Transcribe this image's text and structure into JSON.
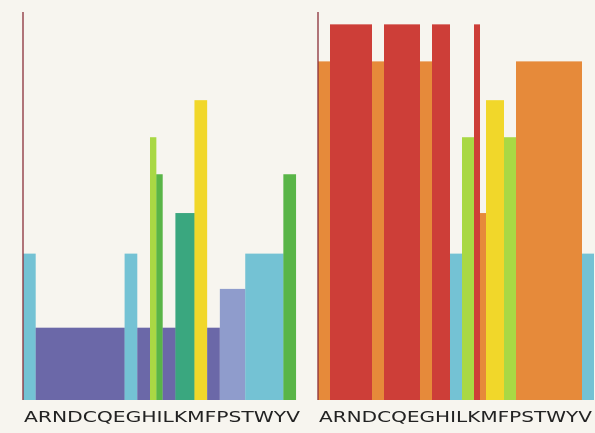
{
  "chart_data": [
    {
      "type": "bar",
      "categories": [
        "A",
        "R",
        "N",
        "D",
        "C",
        "Q",
        "E",
        "G",
        "H",
        "I",
        "L",
        "K",
        "M",
        "F",
        "P",
        "S",
        "T",
        "W",
        "Y",
        "V"
      ],
      "tick_text": "ARNDCQEGHILKMFPSTWYV",
      "ylim": [
        0,
        110
      ],
      "bars": [
        {
          "from": 0,
          "to": 1,
          "value": 41.5,
          "color": "#74c2d4"
        },
        {
          "from": 1,
          "to": 8,
          "value": 20.5,
          "color": "#6b68a8"
        },
        {
          "from": 8,
          "to": 9,
          "value": 41.5,
          "color": "#74c2d4"
        },
        {
          "from": 9,
          "to": 10,
          "value": 20.5,
          "color": "#6b68a8"
        },
        {
          "from": 10,
          "to": 10.5,
          "value": 74.5,
          "color": "#a9d844"
        },
        {
          "from": 10.5,
          "to": 11,
          "value": 64,
          "color": "#59b547"
        },
        {
          "from": 11,
          "to": 12,
          "value": 20.5,
          "color": "#6b68a8"
        },
        {
          "from": 12,
          "to": 13.5,
          "value": 53,
          "color": "#3aa77f"
        },
        {
          "from": 13.5,
          "to": 14.5,
          "value": 85,
          "color": "#f1d72a"
        },
        {
          "from": 14.5,
          "to": 15.5,
          "value": 20.5,
          "color": "#6b68a8"
        },
        {
          "from": 15.5,
          "to": 17.5,
          "value": 31.5,
          "color": "#8f9ccc"
        },
        {
          "from": 17.5,
          "to": 20.5,
          "value": 41.5,
          "color": "#74c2d4"
        },
        {
          "from": 20.5,
          "to": 21.5,
          "value": 64,
          "color": "#59b547"
        }
      ]
    },
    {
      "type": "bar",
      "categories": [
        "A",
        "R",
        "N",
        "D",
        "C",
        "Q",
        "E",
        "G",
        "H",
        "I",
        "L",
        "K",
        "M",
        "F",
        "P",
        "S",
        "T",
        "W",
        "Y",
        "V"
      ],
      "tick_text": "ARNDCQEGHILKMFPSTWYV",
      "ylim": [
        0,
        110
      ],
      "bars": [
        {
          "from": 0,
          "to": 1,
          "value": 96,
          "color": "#e68a3a"
        },
        {
          "from": 1,
          "to": 4.5,
          "value": 106.5,
          "color": "#cd3e38"
        },
        {
          "from": 4.5,
          "to": 5.5,
          "value": 96,
          "color": "#e68a3a"
        },
        {
          "from": 5.5,
          "to": 8.5,
          "value": 106.5,
          "color": "#cd3e38"
        },
        {
          "from": 8.5,
          "to": 9.5,
          "value": 96,
          "color": "#e68a3a"
        },
        {
          "from": 9.5,
          "to": 11,
          "value": 106.5,
          "color": "#cd3e38"
        },
        {
          "from": 11,
          "to": 12,
          "value": 41.5,
          "color": "#74c2d4"
        },
        {
          "from": 12,
          "to": 13,
          "value": 74.5,
          "color": "#a9d844"
        },
        {
          "from": 13,
          "to": 13.5,
          "value": 106.5,
          "color": "#cd3e38"
        },
        {
          "from": 13.5,
          "to": 14,
          "value": 53,
          "color": "#e68a3a"
        },
        {
          "from": 14,
          "to": 15.5,
          "value": 85,
          "color": "#f1d72a"
        },
        {
          "from": 15.5,
          "to": 16.5,
          "value": 74.5,
          "color": "#a9d844"
        },
        {
          "from": 16.5,
          "to": 22,
          "value": 96,
          "color": "#e68a3a"
        },
        {
          "from": 22,
          "to": 23,
          "value": 41.5,
          "color": "#74c2d4"
        }
      ]
    }
  ]
}
